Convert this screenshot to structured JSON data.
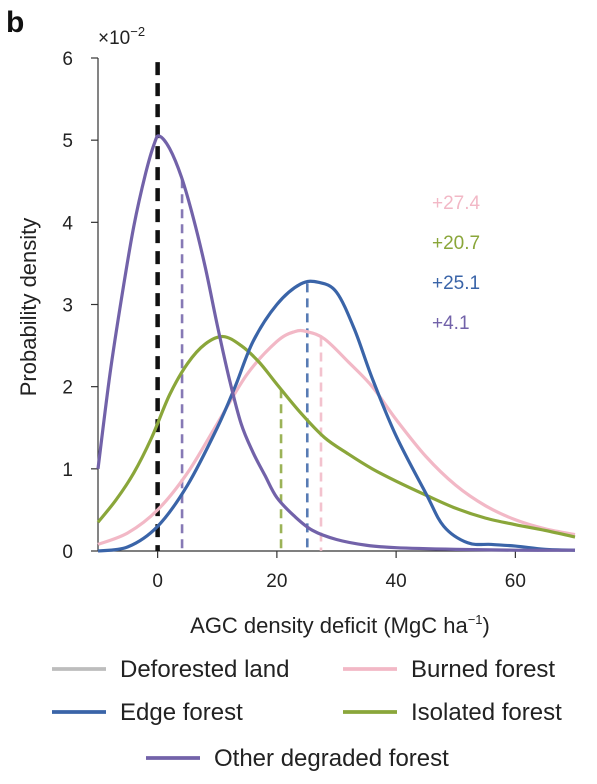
{
  "panel_label": "b",
  "chart_data": {
    "type": "line",
    "y_multiplier_label": "×10",
    "y_multiplier_exponent": "−2",
    "xlabel": "AGC density deficit (MgC ha",
    "xlabel_sup": "−1",
    "xlabel_end": ")",
    "ylabel": "Probability density",
    "xlim": [
      -10,
      70
    ],
    "ylim": [
      0,
      6
    ],
    "x_ticks": [
      0,
      20,
      40,
      60
    ],
    "y_ticks": [
      0,
      1,
      2,
      3,
      4,
      5,
      6
    ],
    "grid": false,
    "legend_position": "bottom",
    "series": [
      {
        "name": "Deforested land",
        "color": "#bdbdbd",
        "points": [],
        "mean": 0,
        "mean_color": "#111111"
      },
      {
        "name": "Burned forest",
        "color": "#f2b8c6",
        "points": [
          [
            -10,
            0.08
          ],
          [
            -5,
            0.22
          ],
          [
            0,
            0.5
          ],
          [
            5,
            0.95
          ],
          [
            10,
            1.55
          ],
          [
            15,
            2.15
          ],
          [
            20,
            2.55
          ],
          [
            23,
            2.67
          ],
          [
            25,
            2.67
          ],
          [
            28,
            2.58
          ],
          [
            32,
            2.3
          ],
          [
            36,
            2.0
          ],
          [
            40,
            1.6
          ],
          [
            45,
            1.15
          ],
          [
            50,
            0.8
          ],
          [
            55,
            0.55
          ],
          [
            60,
            0.38
          ],
          [
            65,
            0.27
          ],
          [
            70,
            0.2
          ]
        ],
        "mean": 27.4,
        "mean_label": "+27.4"
      },
      {
        "name": "Edge forest",
        "color": "#3a64a8",
        "points": [
          [
            -10,
            0.0
          ],
          [
            -5,
            0.05
          ],
          [
            0,
            0.3
          ],
          [
            5,
            0.8
          ],
          [
            10,
            1.5
          ],
          [
            13,
            2.0
          ],
          [
            16,
            2.55
          ],
          [
            20,
            3.0
          ],
          [
            24,
            3.25
          ],
          [
            27,
            3.27
          ],
          [
            30,
            3.15
          ],
          [
            33,
            2.7
          ],
          [
            36,
            2.1
          ],
          [
            40,
            1.4
          ],
          [
            45,
            0.7
          ],
          [
            48,
            0.3
          ],
          [
            52,
            0.1
          ],
          [
            56,
            0.08
          ],
          [
            60,
            0.06
          ],
          [
            65,
            0.02
          ],
          [
            70,
            0.01
          ]
        ],
        "mean": 25.1,
        "mean_label": "+25.1"
      },
      {
        "name": "Isolated forest",
        "color": "#8aa63a",
        "points": [
          [
            -10,
            0.35
          ],
          [
            -7,
            0.62
          ],
          [
            -4,
            0.95
          ],
          [
            -1,
            1.38
          ],
          [
            2,
            1.9
          ],
          [
            5,
            2.28
          ],
          [
            8,
            2.52
          ],
          [
            11,
            2.61
          ],
          [
            14,
            2.5
          ],
          [
            17,
            2.3
          ],
          [
            20,
            2.03
          ],
          [
            24,
            1.68
          ],
          [
            28,
            1.38
          ],
          [
            32,
            1.18
          ],
          [
            36,
            1.0
          ],
          [
            40,
            0.85
          ],
          [
            45,
            0.68
          ],
          [
            50,
            0.52
          ],
          [
            55,
            0.4
          ],
          [
            60,
            0.32
          ],
          [
            65,
            0.25
          ],
          [
            70,
            0.17
          ]
        ],
        "mean": 20.7,
        "mean_label": "+20.7"
      },
      {
        "name": "Other degraded forest",
        "color": "#7262a9",
        "points": [
          [
            -10,
            1.0
          ],
          [
            -8,
            2.15
          ],
          [
            -6,
            3.1
          ],
          [
            -4,
            3.95
          ],
          [
            -2,
            4.6
          ],
          [
            -0.5,
            4.97
          ],
          [
            0.3,
            5.05
          ],
          [
            2,
            4.9
          ],
          [
            4,
            4.55
          ],
          [
            6,
            4.05
          ],
          [
            8,
            3.45
          ],
          [
            10,
            2.75
          ],
          [
            12,
            2.1
          ],
          [
            14,
            1.55
          ],
          [
            16,
            1.2
          ],
          [
            18,
            0.92
          ],
          [
            20,
            0.65
          ],
          [
            23,
            0.42
          ],
          [
            26,
            0.25
          ],
          [
            30,
            0.14
          ],
          [
            35,
            0.07
          ],
          [
            40,
            0.04
          ],
          [
            50,
            0.02
          ],
          [
            60,
            0.01
          ],
          [
            70,
            0.01
          ]
        ],
        "mean": 4.1,
        "mean_label": "+4.1"
      }
    ]
  }
}
